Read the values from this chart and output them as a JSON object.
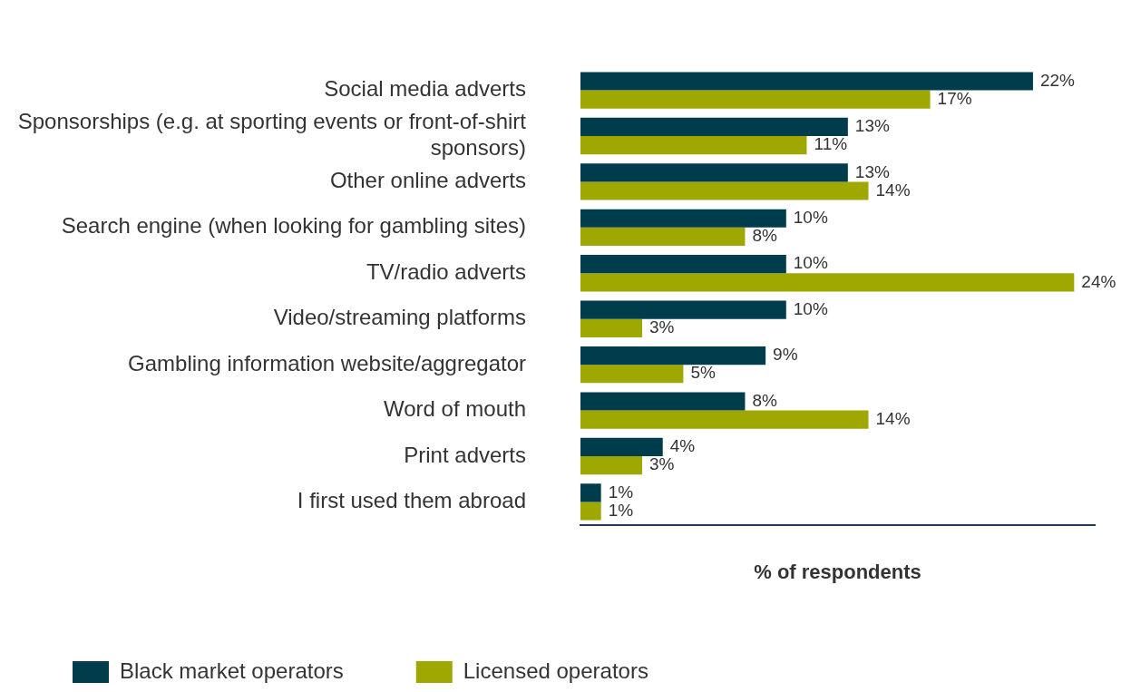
{
  "chart_data": {
    "type": "bar",
    "orientation": "horizontal",
    "xlabel": "% of respondents",
    "categories": [
      "Social media adverts",
      "Sponsorships (e.g. at sporting events or front-of-shirt sponsors)",
      "Other online adverts",
      "Search engine (when looking for gambling sites)",
      "TV/radio adverts",
      "Video/streaming platforms",
      "Gambling information website/aggregator",
      "Word of mouth",
      "Print adverts",
      "I first used them abroad"
    ],
    "series": [
      {
        "name": "Black market operators",
        "color": "#003d4c",
        "values": [
          22,
          13,
          13,
          10,
          10,
          10,
          9,
          8,
          4,
          1
        ],
        "value_labels": [
          "22%",
          "13%",
          "13%",
          "10%",
          "10%",
          "10%",
          "9%",
          "8%",
          "4%",
          "1%"
        ]
      },
      {
        "name": "Licensed operators",
        "color": "#9ea800",
        "values": [
          17,
          11,
          14,
          8,
          24,
          3,
          5,
          14,
          3,
          1
        ],
        "value_labels": [
          "17%",
          "11%",
          "14%",
          "8%",
          "24%",
          "3%",
          "5%",
          "14%",
          "3%",
          "1%"
        ]
      }
    ],
    "grid": false,
    "legend": "bottom left",
    "tick_labels": "y"
  }
}
